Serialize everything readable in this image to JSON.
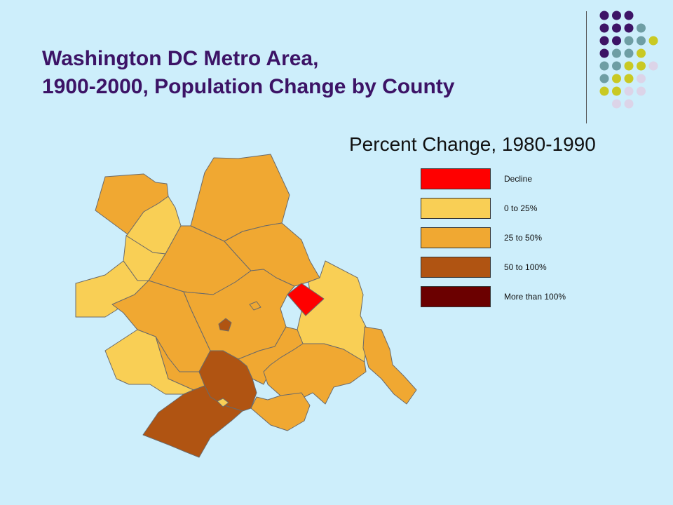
{
  "title": {
    "line1": "Washington DC Metro Area,",
    "line2": "1900-2000, Population Change by County"
  },
  "subtitle": "Percent Change, 1980-1990",
  "colors": {
    "background": "#cdeefb",
    "title": "#3c1366",
    "decline": "#ff0000",
    "low": "#f9cf55",
    "mid": "#f0a832",
    "high": "#b05412",
    "very_high": "#6b0000",
    "dot_purple": "#3d1466",
    "dot_teal": "#6e9ea4",
    "dot_yellow": "#c9c923",
    "dot_lavender": "#dcd4e8"
  },
  "legend": [
    {
      "label": "Decline",
      "color": "#ff0000"
    },
    {
      "label": "0 to 25%",
      "color": "#f9cf55"
    },
    {
      "label": "25 to 50%",
      "color": "#f0a832"
    },
    {
      "label": "50 to 100%",
      "color": "#b05412"
    },
    {
      "label": "More than 100%",
      "color": "#6b0000"
    }
  ],
  "counties": [
    {
      "name": "county-northwest-a",
      "category": "25 to 50%"
    },
    {
      "name": "county-northwest-b",
      "category": "0 to 25%"
    },
    {
      "name": "county-north",
      "category": "25 to 50%"
    },
    {
      "name": "county-west-a",
      "category": "0 to 25%"
    },
    {
      "name": "county-west-b",
      "category": "0 to 25%"
    },
    {
      "name": "county-central-north",
      "category": "25 to 50%"
    },
    {
      "name": "county-north-east",
      "category": "25 to 50%"
    },
    {
      "name": "county-central",
      "category": "25 to 50%"
    },
    {
      "name": "county-inner",
      "category": "25 to 50%"
    },
    {
      "name": "county-east",
      "category": "0 to 25%"
    },
    {
      "name": "district-of-columbia",
      "category": "Decline"
    },
    {
      "name": "county-southwest-a",
      "category": "25 to 50%"
    },
    {
      "name": "county-southwest-b",
      "category": "0 to 25%"
    },
    {
      "name": "county-south-central",
      "category": "25 to 50%"
    },
    {
      "name": "county-south-a",
      "category": "50 to 100%"
    },
    {
      "name": "county-south-b",
      "category": "50 to 100%"
    },
    {
      "name": "county-southeast",
      "category": "25 to 50%"
    },
    {
      "name": "county-far-east",
      "category": "25 to 50%"
    },
    {
      "name": "county-south-small",
      "category": "25 to 50%"
    },
    {
      "name": "city-small-a",
      "category": "50 to 100%"
    },
    {
      "name": "city-small-b",
      "category": "25 to 50%"
    },
    {
      "name": "city-small-c",
      "category": "0 to 25%"
    }
  ]
}
